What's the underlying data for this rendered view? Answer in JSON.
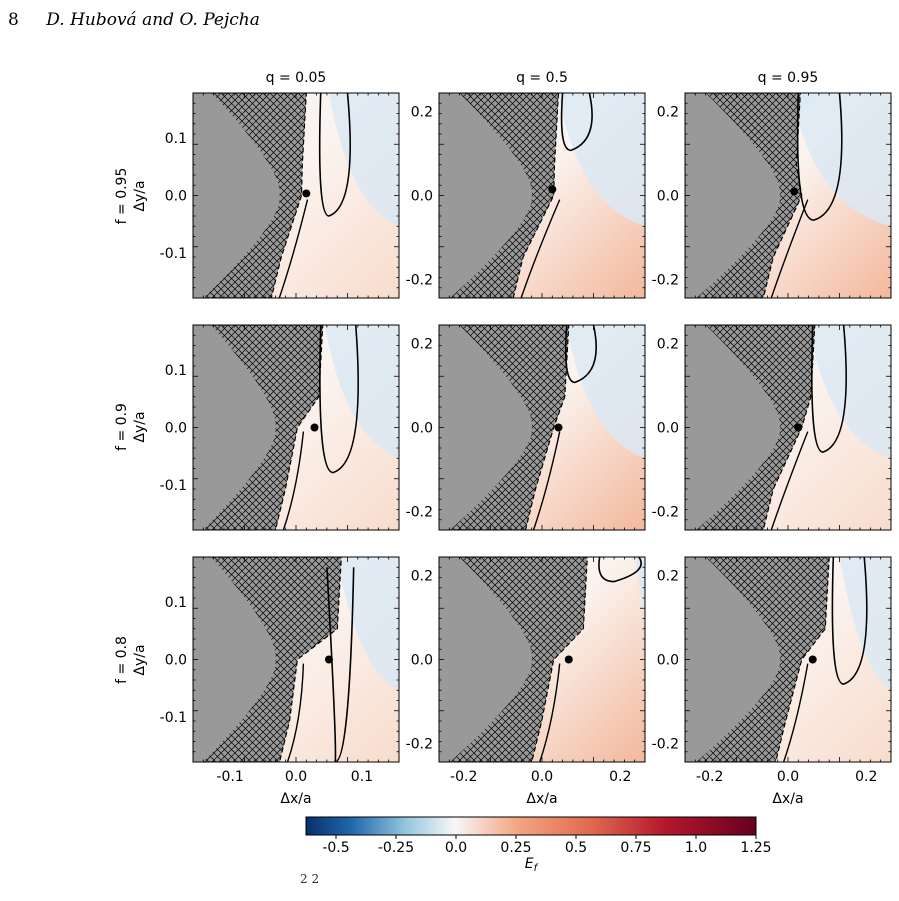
{
  "header": {
    "page_number": "8",
    "authors": "D. Hubová and O. Pejcha"
  },
  "figure": {
    "col_titles": [
      "q = 0.05",
      "q = 0.5",
      "q = 0.95"
    ],
    "row_titles": [
      "f = 0.95",
      "f = 0.9",
      "f = 0.8"
    ],
    "ylabel": "Δy/a",
    "xlabel": "Δx/a",
    "col0_xticks": [
      "-0.1",
      "0.0",
      "0.1"
    ],
    "col_xticks": [
      "-0.2",
      "0.0",
      "0.2"
    ],
    "col0_yticks": [
      "0.1",
      "0.0",
      "-0.1"
    ],
    "col_yticks": [
      "0.2",
      "0.0",
      "-0.2"
    ],
    "colorbar": {
      "label": "E_f",
      "ticks": [
        "-0.5",
        "-0.25",
        "0.0",
        "0.25",
        "0.5",
        "0.75",
        "1.0",
        "1.25"
      ],
      "min": -0.625,
      "max": 1.25,
      "cmap": "RdBu_r",
      "low_color": "#08306b",
      "mid_color": "#f7f7f7",
      "high_color": "#67001f"
    },
    "colors": {
      "gray_region": "#999999",
      "hatch": "#000000"
    }
  },
  "caption_fragment": "2 2"
}
